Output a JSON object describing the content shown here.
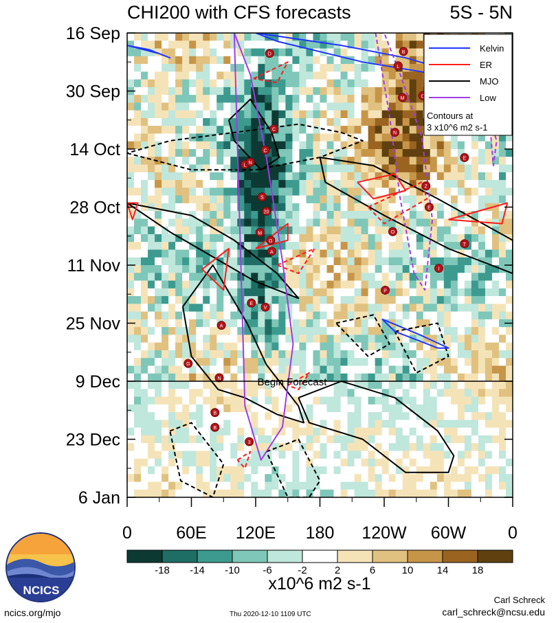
{
  "chart_data": {
    "type": "heatmap",
    "title": "CHI200 with CFS forecasts",
    "region_label": "5S - 5N",
    "y_ticks": [
      "16 Sep",
      "30 Sep",
      "14 Oct",
      "28 Oct",
      "11 Nov",
      "25 Nov",
      "9 Dec",
      "23 Dec",
      "6 Jan"
    ],
    "x_ticks": [
      "0",
      "60E",
      "120E",
      "180",
      "120W",
      "60W",
      "0"
    ],
    "x_range_deg": [
      0,
      360
    ],
    "y_range_days": [
      0,
      112
    ],
    "forecast_start_day": 84,
    "forecast_label": "Begin Forecast",
    "colorbar": {
      "labels": [
        "-18",
        "-14",
        "-10",
        "-6",
        "-2",
        "2",
        "6",
        "10",
        "14",
        "18"
      ],
      "colors": [
        "#0c3a32",
        "#1f6e66",
        "#3d9a8f",
        "#7fc7b8",
        "#bfe7dc",
        "#ffffff",
        "#f5e3b8",
        "#e0c17f",
        "#c79548",
        "#9a6420",
        "#60400e"
      ],
      "units": "x10^6 m2 s-1"
    },
    "legend": {
      "items": [
        {
          "name": "Kelvin",
          "color": "#1f35ff"
        },
        {
          "name": "ER",
          "color": "#ff1a1a"
        },
        {
          "name": "MJO",
          "color": "#000000"
        },
        {
          "name": "Low",
          "color": "#a03be3"
        }
      ],
      "note_line1": "Contours at",
      "note_line2": "3 x10^6 m2 s-1"
    },
    "contours": {
      "mjo": [
        {
          "lon": [
            95,
            115,
            135,
            142,
            125,
            100,
            95
          ],
          "day": [
            21,
            16,
            24,
            30,
            33,
            26,
            21
          ],
          "dashed": false
        },
        {
          "lon": [
            52,
            80,
            112,
            130,
            160,
            165,
            140,
            110,
            85,
            60,
            52
          ],
          "day": [
            66,
            56,
            70,
            80,
            90,
            94,
            92,
            88,
            86,
            78,
            66
          ],
          "dashed": false
        },
        {
          "lon": [
            0,
            40,
            80,
            120,
            160,
            140,
            100,
            60,
            0
          ],
          "day": [
            41,
            48,
            54,
            60,
            64,
            58,
            50,
            44,
            41
          ],
          "dashed": false
        },
        {
          "lon": [
            180,
            230,
            290,
            360,
            360,
            300,
            240,
            185,
            180
          ],
          "day": [
            30,
            32,
            40,
            50,
            58,
            52,
            44,
            36,
            30
          ],
          "dashed": false
        },
        {
          "lon": [
            160,
            200,
            250,
            290,
            305,
            300,
            260,
            220,
            170,
            160
          ],
          "day": [
            88,
            84,
            88,
            96,
            102,
            106,
            106,
            98,
            94,
            88
          ],
          "dashed": false
        },
        {
          "lon": [
            0,
            60,
            120,
            180,
            220,
            200,
            160,
            100,
            40,
            0
          ],
          "day": [
            29,
            33,
            33,
            30,
            26,
            24,
            22,
            24,
            26,
            29
          ],
          "dashed": true
        },
        {
          "lon": [
            40,
            60,
            90,
            80,
            50,
            40
          ],
          "day": [
            96,
            94,
            104,
            112,
            108,
            96
          ],
          "dashed": true
        },
        {
          "lon": [
            130,
            160,
            180,
            170,
            150,
            130
          ],
          "day": [
            101,
            98,
            108,
            112,
            112,
            101
          ],
          "dashed": true
        },
        {
          "lon": [
            195,
            230,
            245,
            225,
            195
          ],
          "day": [
            70,
            68,
            75,
            78,
            70
          ],
          "dashed": true
        },
        {
          "lon": [
            250,
            290,
            300,
            270,
            250
          ],
          "day": [
            72,
            70,
            78,
            82,
            72
          ],
          "dashed": true
        }
      ],
      "kelvin": [
        {
          "lon": [
            0,
            30,
            40,
            20,
            0
          ],
          "day": [
            3,
            5,
            6,
            4,
            3
          ],
          "dashed": false
        },
        {
          "lon": [
            120,
            200,
            260,
            300,
            290,
            220,
            140,
            120
          ],
          "day": [
            0,
            3,
            6,
            9,
            10,
            7,
            2,
            0
          ],
          "dashed": false
        },
        {
          "lon": [
            238,
            275,
            300,
            290,
            250,
            238
          ],
          "day": [
            69,
            73,
            76,
            76,
            72,
            69
          ],
          "dashed": false
        }
      ],
      "er": [
        {
          "lon": [
            70,
            95,
            90,
            70
          ],
          "day": [
            57,
            52,
            62,
            57
          ],
          "dashed": false
        },
        {
          "lon": [
            120,
            150,
            150,
            120
          ],
          "day": [
            52,
            46,
            50,
            52
          ],
          "dashed": false
        },
        {
          "lon": [
            215,
            250,
            260,
            230,
            215
          ],
          "day": [
            36,
            34,
            38,
            40,
            36
          ],
          "dashed": false
        },
        {
          "lon": [
            300,
            355,
            350,
            300
          ],
          "day": [
            45,
            41,
            46,
            45
          ],
          "dashed": false
        },
        {
          "lon": [
            0,
            10,
            5,
            0
          ],
          "day": [
            41,
            41,
            45,
            41
          ],
          "dashed": false
        },
        {
          "lon": [
            140,
            175,
            160,
            140
          ],
          "day": [
            56,
            52,
            58,
            56
          ],
          "dashed": true
        },
        {
          "lon": [
            225,
            275,
            280,
            240,
            225
          ],
          "day": [
            42,
            36,
            40,
            46,
            42
          ],
          "dashed": true
        },
        {
          "lon": [
            118,
            150,
            140,
            118
          ],
          "day": [
            11,
            7,
            12,
            11
          ],
          "dashed": true
        },
        {
          "lon": [
            150,
            170,
            160,
            150
          ],
          "day": [
            85,
            82,
            86,
            85
          ],
          "dashed": true
        },
        {
          "lon": [
            103,
            115,
            110,
            103
          ],
          "day": [
            103,
            101,
            105,
            103
          ],
          "dashed": true
        }
      ],
      "low": [
        {
          "lon": [
            100,
            115,
            130,
            145,
            155,
            145,
            125,
            110,
            100
          ],
          "day": [
            0,
            10,
            30,
            55,
            75,
            95,
            103,
            90,
            0
          ],
          "dashed": false
        },
        {
          "lon": [
            232,
            245,
            255,
            268,
            278,
            285,
            275,
            255,
            240,
            232
          ],
          "day": [
            0,
            20,
            40,
            58,
            62,
            45,
            25,
            10,
            0,
            0
          ],
          "dashed": true
        },
        {
          "lon": [
            338,
            345,
            342,
            338
          ],
          "day": [
            20,
            26,
            32,
            20
          ],
          "dashed": true
        }
      ]
    },
    "storm_markers": [
      "D",
      "C",
      "C",
      "L",
      "N",
      "S",
      "20",
      "M",
      "G",
      "A",
      "E",
      "V",
      "A",
      "G",
      "N",
      "B",
      "B",
      "3",
      "B",
      "L",
      "M",
      "N",
      "C",
      "E",
      "Z",
      "E",
      "O",
      "P",
      "T",
      "I"
    ]
  },
  "footer": {
    "site": "ncics.org/mjo",
    "timestamp": "Thu 2020-12-10 1109 UTC",
    "author": "Carl Schreck",
    "email": "carl_schreck@ncsu.edu",
    "logo_text": "NCICS"
  }
}
